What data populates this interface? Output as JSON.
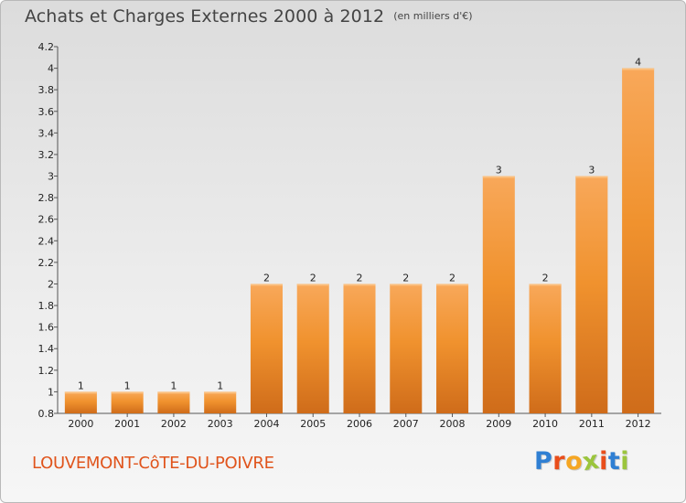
{
  "chart_data": {
    "type": "bar",
    "title": "Achats et Charges Externes 2000 à 2012",
    "subtitle": "(en milliers d'€)",
    "categories": [
      "2000",
      "2001",
      "2002",
      "2003",
      "2004",
      "2005",
      "2006",
      "2007",
      "2008",
      "2009",
      "2010",
      "2011",
      "2012"
    ],
    "values": [
      1,
      1,
      1,
      1,
      2,
      2,
      2,
      2,
      2,
      3,
      2,
      3,
      4
    ],
    "data_labels": [
      "1",
      "1",
      "1",
      "1",
      "2",
      "2",
      "2",
      "2",
      "2",
      "3",
      "2",
      "3",
      "4"
    ],
    "ylim": [
      0.8,
      4.2
    ],
    "yticks": [
      0.8,
      1,
      1.2,
      1.4,
      1.6,
      1.8,
      2,
      2.2,
      2.4,
      2.6,
      2.8,
      3,
      3.2,
      3.4,
      3.6,
      3.8,
      4,
      4.2
    ],
    "ytick_labels": [
      "0.8",
      "1",
      "1.2",
      "1.4",
      "1.6",
      "1.8",
      "2",
      "2.2",
      "2.4",
      "2.6",
      "2.8",
      "3",
      "3.2",
      "3.4",
      "3.6",
      "3.8",
      "4",
      "4.2"
    ],
    "xlabel": "",
    "ylabel": "",
    "grid": false,
    "bar_color": "#f0922e",
    "bar_color_light": "#f8a85a",
    "bar_color_dark": "#cf6c1a"
  },
  "footer": {
    "commune": "LOUVEMONT-CôTE-DU-POIVRE",
    "logo_letters": [
      "P",
      "r",
      "o",
      "x",
      "i",
      "t",
      "i"
    ],
    "logo_colors": [
      "#2f7fd3",
      "#e94e1b",
      "#f5a623",
      "#9bc53d",
      "#e94e1b",
      "#2f7fd3",
      "#9bc53d"
    ]
  }
}
